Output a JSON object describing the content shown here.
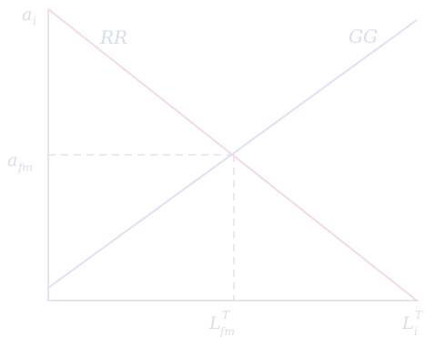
{
  "diagram": {
    "labels": {
      "y_axis_top": {
        "base": "a",
        "sub": "i",
        "sup": ""
      },
      "y_axis_mid": {
        "base": "a",
        "sub": "fm",
        "sup": ""
      },
      "x_axis_mid": {
        "base": "L",
        "sub": "fm",
        "sup": "T"
      },
      "x_axis_right": {
        "base": "L",
        "sub": "i",
        "sup": "T"
      },
      "curve_rr": "RR",
      "curve_gg": "GG"
    },
    "colors": {
      "axis": "#e3e5ee",
      "rr_curve": "#f3d9e2",
      "gg_curve": "#dfe0f3",
      "guide_dash": "#ebdfe5",
      "label": "#d9dde6"
    }
  }
}
